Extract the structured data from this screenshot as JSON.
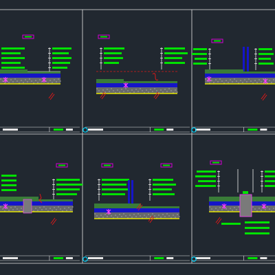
{
  "drawing": {
    "background": "#212830",
    "colors": {
      "frame": "#e8e8e8",
      "label_green": "#00e200",
      "tag_magenta": "#d400d4",
      "slab_green": "#3a7c38",
      "water_blue": "#1515c8",
      "aggregate": "#7a7a7a",
      "base_yellow": "#e6e600",
      "marker_red": "#e01818",
      "symbol_magenta": "#ff3cff",
      "cyan_circle": "#00d8ff",
      "leader_white": "#f0f0f0"
    },
    "sheet_count": 6,
    "sheets": [
      {
        "name": "detail-1"
      },
      {
        "name": "detail-2"
      },
      {
        "name": "detail-3"
      },
      {
        "name": "detail-4"
      },
      {
        "name": "detail-5"
      },
      {
        "name": "detail-6"
      }
    ]
  }
}
